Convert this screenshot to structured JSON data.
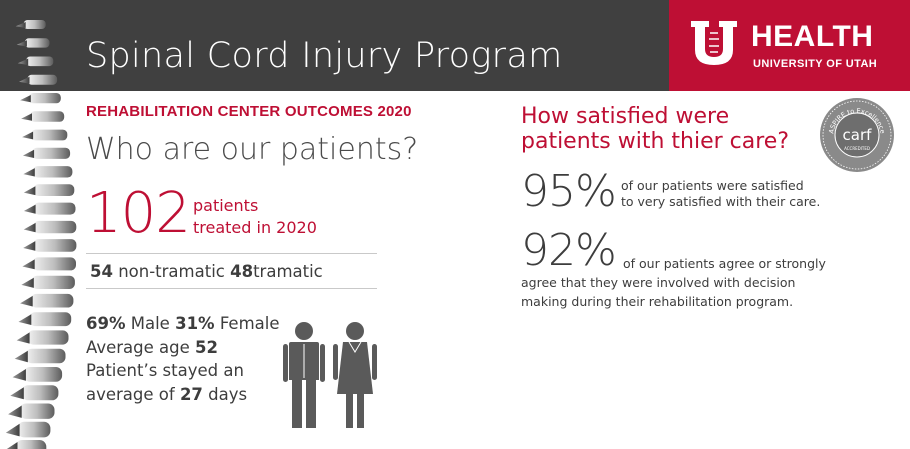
{
  "header": {
    "title": "Spinal Cord Injury Program",
    "logo_word": "HEALTH",
    "logo_subtitle": "UNIVERSITY OF UTAH"
  },
  "left": {
    "kicker": "REHABILITATION CENTER OUTCOMES 2020",
    "heading": "Who are our patients?",
    "patients_count": "102",
    "patients_caption_1": "patients",
    "patients_caption_2": "treated in 2020",
    "injury": {
      "non_traumatic_count": "54",
      "non_traumatic_label": "non-tramatic",
      "traumatic_count": "48",
      "traumatic_label": "tramatic"
    },
    "demographics": {
      "male_pct": "69%",
      "male_label": "Male",
      "female_pct": "31%",
      "female_label": "Female",
      "age_label": "Average age",
      "age_value": "52",
      "stay_line_1": "Patient’s stayed an",
      "stay_prefix": "average of",
      "stay_value": "27",
      "stay_unit": "days"
    }
  },
  "right": {
    "title_1": "How satisfied were",
    "title_2": "patients with thier care?",
    "seal": {
      "word": "carf",
      "ring_text": "ASPIRE to Excellence",
      "accredited": "ACCREDITED"
    },
    "stat_95": {
      "value": "95%",
      "text_1": "of our patients were satisfied",
      "text_2": "to very satisfied with their care."
    },
    "stat_92": {
      "value": "92%",
      "text_1": "of our patients agree or strongly",
      "text_2": "agree that they were involved with decision",
      "text_3": "making during their rehabilitation program."
    }
  },
  "icons": [
    "spine-illustration",
    "university-u-logo",
    "carf-seal-icon",
    "male-person-icon",
    "female-person-icon"
  ],
  "colors": {
    "brand_red": "#be0f34",
    "header_gray": "#404040",
    "text_gray": "#3d3d3d",
    "icon_gray": "#5a5a5a"
  }
}
